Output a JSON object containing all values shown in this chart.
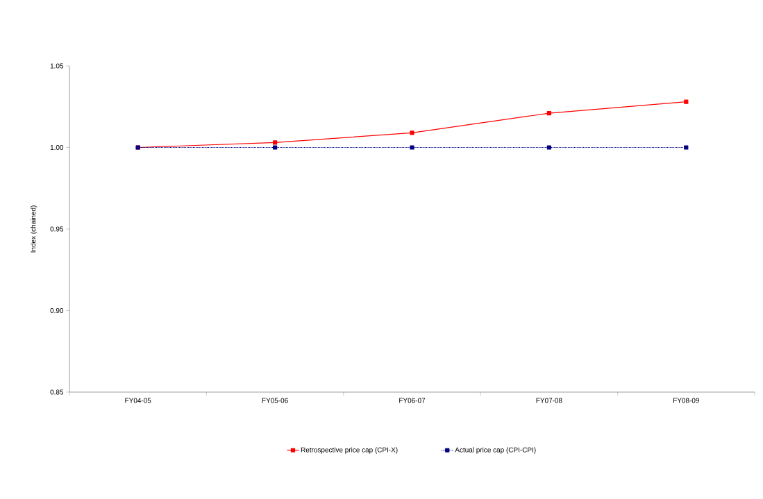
{
  "chart_data": {
    "type": "line",
    "ylabel": "Index (chained)",
    "categories": [
      "FY04-05",
      "FY05-06",
      "FY06-07",
      "FY07-08",
      "FY08-09"
    ],
    "series": [
      {
        "name": "Retrospective price cap (CPI-X)",
        "color": "#ff0000",
        "values": [
          1.0,
          1.003,
          1.009,
          1.021,
          1.028
        ],
        "line_style": "solid"
      },
      {
        "name": "Actual price cap (CPI-CPI)",
        "color": "#000080",
        "values": [
          1.0,
          1.0,
          1.0,
          1.0,
          1.0
        ],
        "line_style": "dotted"
      }
    ],
    "ylim": [
      0.85,
      1.05
    ],
    "yticks": [
      {
        "value": 0.85,
        "label": "0.85"
      },
      {
        "value": 0.9,
        "label": "0.90"
      },
      {
        "value": 0.95,
        "label": "0.95"
      },
      {
        "value": 1.0,
        "label": "1.00"
      },
      {
        "value": 1.05,
        "label": "1.05"
      }
    ],
    "marker": "square",
    "grid": false,
    "legend": "bottom"
  }
}
